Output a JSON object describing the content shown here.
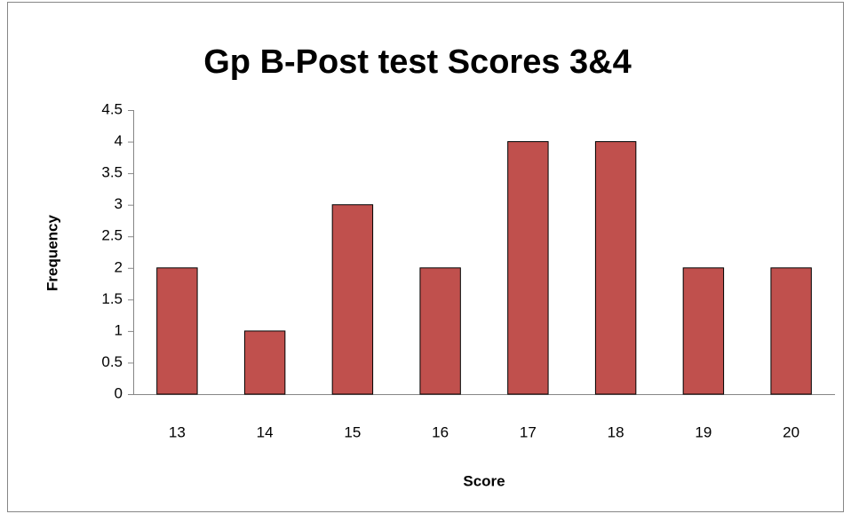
{
  "chart_data": {
    "type": "bar",
    "title": "Gp B-Post test Scores 3&4",
    "x_label": "Score",
    "y_label": "Frequency",
    "categories": [
      "13",
      "14",
      "15",
      "16",
      "17",
      "18",
      "19",
      "20"
    ],
    "values": [
      2,
      1,
      3,
      2,
      4,
      4,
      2,
      2
    ],
    "color": "#c0504d",
    "ylim": [
      0,
      4.5
    ],
    "yticks": [
      0,
      0.5,
      1,
      1.5,
      2,
      2.5,
      3,
      3.5,
      4,
      4.5
    ],
    "grid": false
  }
}
